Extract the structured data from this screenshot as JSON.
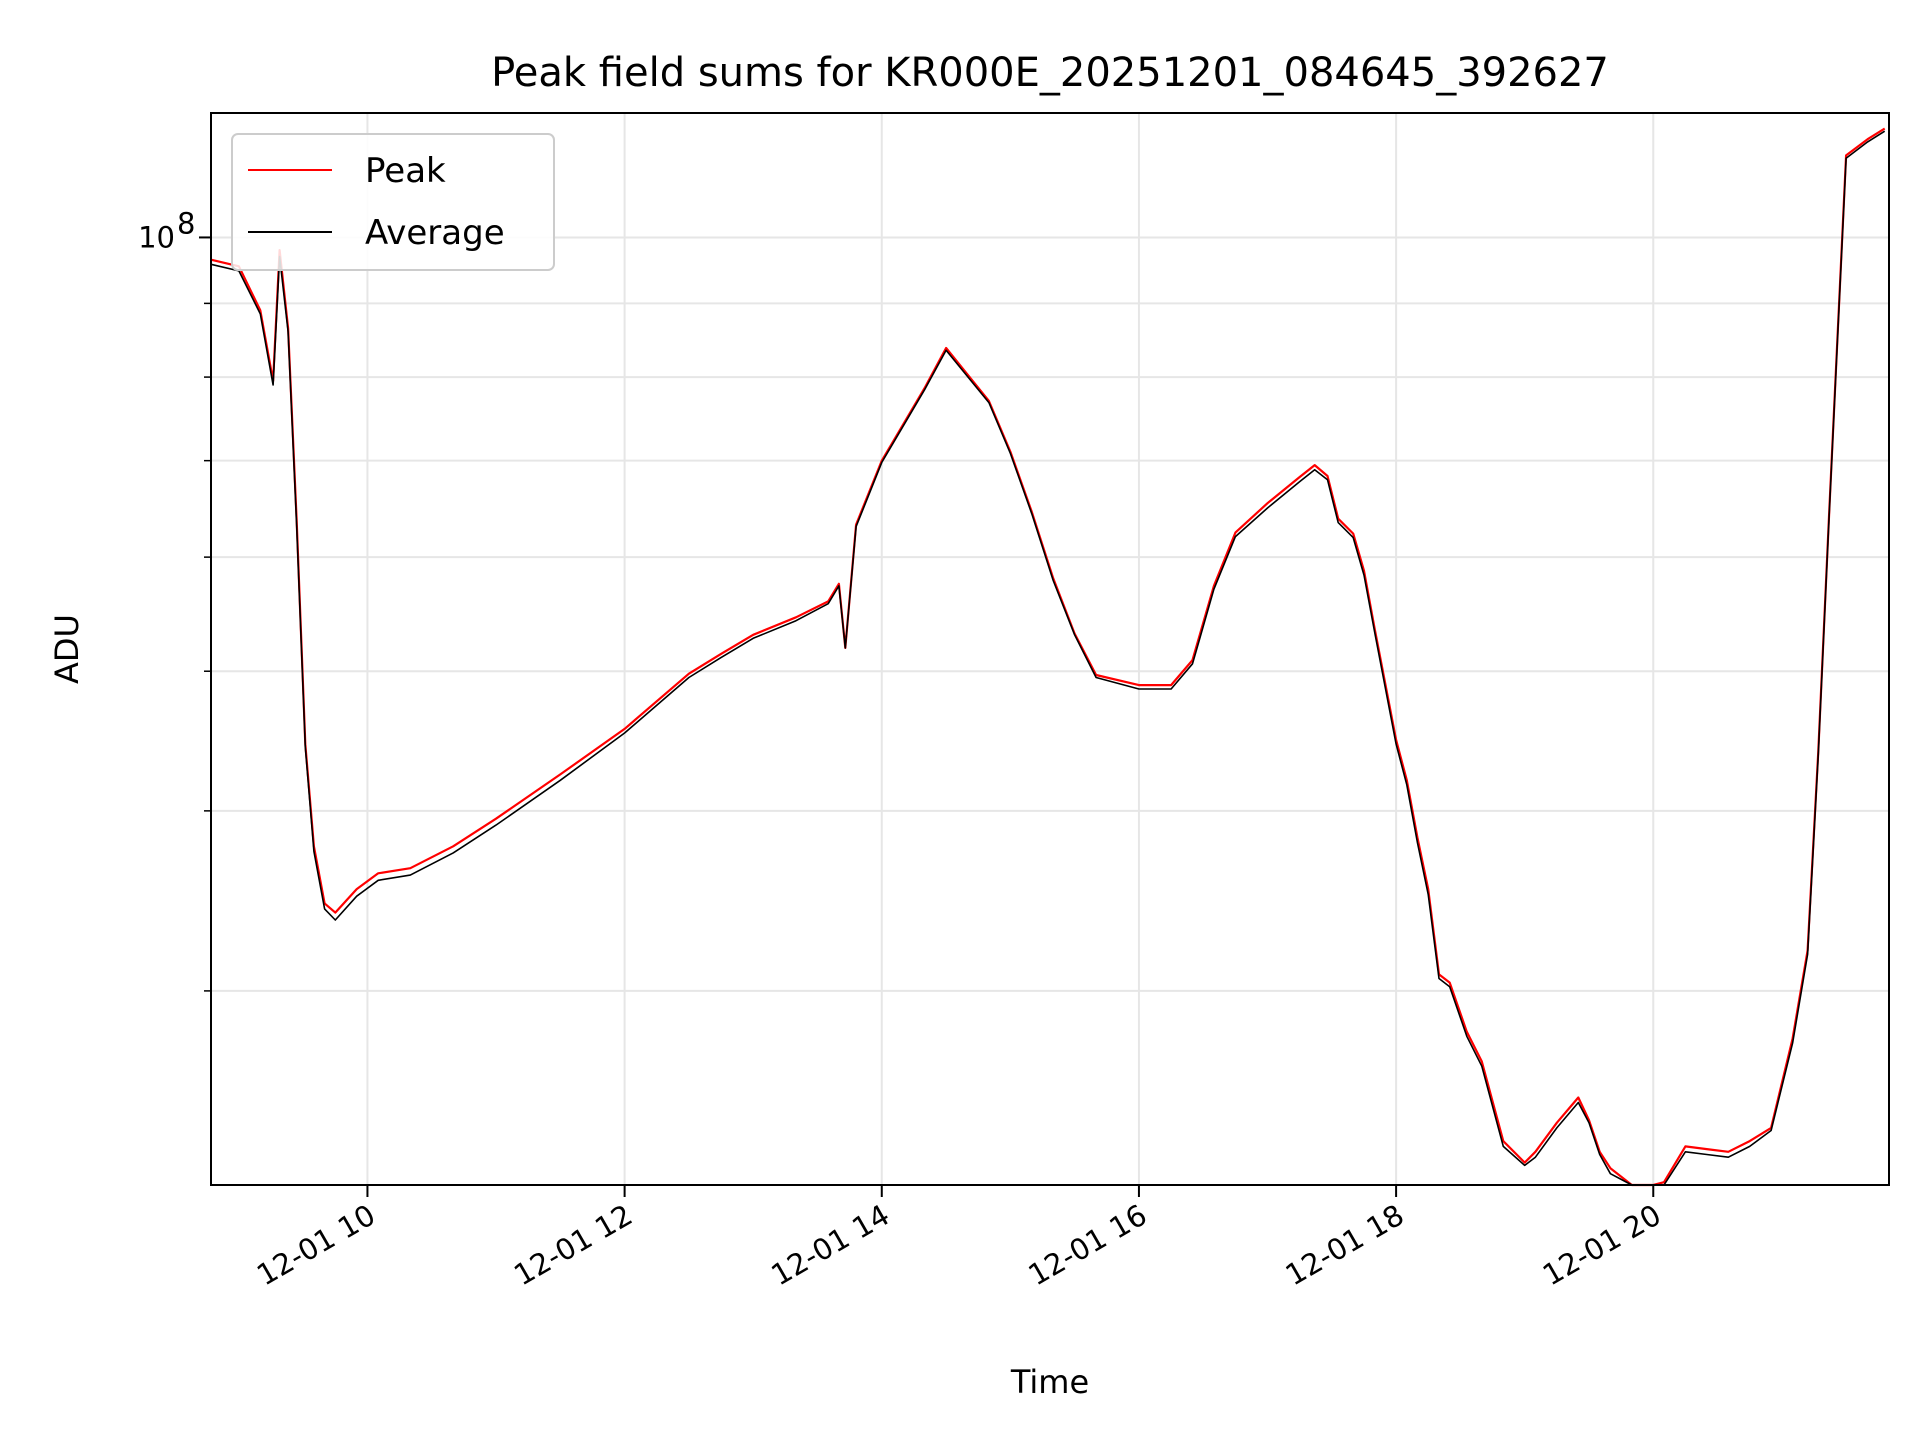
{
  "chart_data": {
    "type": "line",
    "title": "Peak field sums for KR000E_20251201_084645_392627",
    "xlabel": "Time",
    "ylabel": "ADU",
    "x_scale": "time",
    "y_scale": "log",
    "xlim": [
      "2025-12-01 08:47",
      "2025-12-01 21:50"
    ],
    "ylim": [
      22000000,
      122000000
    ],
    "x_ticks": [
      {
        "value": "2025-12-01 10:00",
        "label": "12-01 10"
      },
      {
        "value": "2025-12-01 12:00",
        "label": "12-01 12"
      },
      {
        "value": "2025-12-01 14:00",
        "label": "12-01 14"
      },
      {
        "value": "2025-12-01 16:00",
        "label": "12-01 16"
      },
      {
        "value": "2025-12-01 18:00",
        "label": "12-01 18"
      },
      {
        "value": "2025-12-01 20:00",
        "label": "12-01 20"
      }
    ],
    "y_major_ticks": [
      {
        "value": 100000000,
        "label_base": "10",
        "label_exp": "8"
      }
    ],
    "y_minor_ticks": [
      30000000,
      40000000,
      50000000,
      60000000,
      70000000,
      80000000,
      90000000
    ],
    "grid": true,
    "legend": {
      "position": "top-left"
    },
    "series": [
      {
        "name": "Peak",
        "color": "#ff0000",
        "x": [
          "2025-12-01 08:47",
          "2025-12-01 09:00",
          "2025-12-01 09:10",
          "2025-12-01 09:16",
          "2025-12-01 09:19",
          "2025-12-01 09:23",
          "2025-12-01 09:27",
          "2025-12-01 09:31",
          "2025-12-01 09:35",
          "2025-12-01 09:40",
          "2025-12-01 09:45",
          "2025-12-01 09:55",
          "2025-12-01 10:05",
          "2025-12-01 10:20",
          "2025-12-01 10:40",
          "2025-12-01 11:00",
          "2025-12-01 11:30",
          "2025-12-01 12:00",
          "2025-12-01 12:30",
          "2025-12-01 12:45",
          "2025-12-01 13:00",
          "2025-12-01 13:20",
          "2025-12-01 13:35",
          "2025-12-01 13:40",
          "2025-12-01 13:43",
          "2025-12-01 13:48",
          "2025-12-01 14:00",
          "2025-12-01 14:20",
          "2025-12-01 14:30",
          "2025-12-01 14:50",
          "2025-12-01 15:00",
          "2025-12-01 15:10",
          "2025-12-01 15:20",
          "2025-12-01 15:30",
          "2025-12-01 15:40",
          "2025-12-01 16:00",
          "2025-12-01 16:15",
          "2025-12-01 16:25",
          "2025-12-01 16:35",
          "2025-12-01 16:45",
          "2025-12-01 17:00",
          "2025-12-01 17:15",
          "2025-12-01 17:22",
          "2025-12-01 17:28",
          "2025-12-01 17:33",
          "2025-12-01 17:40",
          "2025-12-01 17:45",
          "2025-12-01 17:50",
          "2025-12-01 18:00",
          "2025-12-01 18:05",
          "2025-12-01 18:10",
          "2025-12-01 18:15",
          "2025-12-01 18:20",
          "2025-12-01 18:25",
          "2025-12-01 18:33",
          "2025-12-01 18:40",
          "2025-12-01 18:50",
          "2025-12-01 19:00",
          "2025-12-01 19:05",
          "2025-12-01 19:15",
          "2025-12-01 19:25",
          "2025-12-01 19:30",
          "2025-12-01 19:35",
          "2025-12-01 19:40",
          "2025-12-01 19:50",
          "2025-12-01 20:00",
          "2025-12-01 20:05",
          "2025-12-01 20:15",
          "2025-12-01 20:25",
          "2025-12-01 20:35",
          "2025-12-01 20:45",
          "2025-12-01 20:55",
          "2025-12-01 21:05",
          "2025-12-01 21:12",
          "2025-12-01 21:17",
          "2025-12-01 21:22",
          "2025-12-01 21:30",
          "2025-12-01 21:40",
          "2025-12-01 21:48"
        ],
        "values": [
          96500000,
          95500000,
          89000000,
          79500000,
          98000000,
          86500000,
          63500000,
          44500000,
          37800000,
          34500000,
          34000000,
          35300000,
          36200000,
          36500000,
          37800000,
          39500000,
          42400000,
          45600000,
          49800000,
          51400000,
          53000000,
          54500000,
          55900000,
          57500000,
          51900000,
          63200000,
          70000000,
          78600000,
          83800000,
          77000000,
          71000000,
          64500000,
          58000000,
          53100000,
          49700000,
          48900000,
          48900000,
          50900000,
          57300000,
          62400000,
          65400000,
          68200000,
          69500000,
          68300000,
          63800000,
          62300000,
          58700000,
          53500000,
          44800000,
          42000000,
          38300000,
          35300000,
          30800000,
          30400000,
          28100000,
          26800000,
          23600000,
          22800000,
          23200000,
          24300000,
          25300000,
          24400000,
          23200000,
          22600000,
          21700000,
          21400000,
          22100000,
          23400000,
          23300000,
          23200000,
          23600000,
          24100000,
          27800000,
          32000000,
          44000000,
          64000000,
          114000000,
          117000000,
          119000000
        ]
      },
      {
        "name": "Average",
        "color": "#000000",
        "x": [
          "2025-12-01 08:47",
          "2025-12-01 09:00",
          "2025-12-01 09:10",
          "2025-12-01 09:16",
          "2025-12-01 09:19",
          "2025-12-01 09:23",
          "2025-12-01 09:27",
          "2025-12-01 09:31",
          "2025-12-01 09:35",
          "2025-12-01 09:40",
          "2025-12-01 09:45",
          "2025-12-01 09:55",
          "2025-12-01 10:05",
          "2025-12-01 10:20",
          "2025-12-01 10:40",
          "2025-12-01 11:00",
          "2025-12-01 11:30",
          "2025-12-01 12:00",
          "2025-12-01 12:30",
          "2025-12-01 12:45",
          "2025-12-01 13:00",
          "2025-12-01 13:20",
          "2025-12-01 13:35",
          "2025-12-01 13:40",
          "2025-12-01 13:43",
          "2025-12-01 13:48",
          "2025-12-01 14:00",
          "2025-12-01 14:20",
          "2025-12-01 14:30",
          "2025-12-01 14:50",
          "2025-12-01 15:00",
          "2025-12-01 15:10",
          "2025-12-01 15:20",
          "2025-12-01 15:30",
          "2025-12-01 15:40",
          "2025-12-01 16:00",
          "2025-12-01 16:15",
          "2025-12-01 16:25",
          "2025-12-01 16:35",
          "2025-12-01 16:45",
          "2025-12-01 17:00",
          "2025-12-01 17:15",
          "2025-12-01 17:22",
          "2025-12-01 17:28",
          "2025-12-01 17:33",
          "2025-12-01 17:40",
          "2025-12-01 17:45",
          "2025-12-01 17:50",
          "2025-12-01 18:00",
          "2025-12-01 18:05",
          "2025-12-01 18:10",
          "2025-12-01 18:15",
          "2025-12-01 18:20",
          "2025-12-01 18:25",
          "2025-12-01 18:33",
          "2025-12-01 18:40",
          "2025-12-01 18:50",
          "2025-12-01 19:00",
          "2025-12-01 19:05",
          "2025-12-01 19:15",
          "2025-12-01 19:25",
          "2025-12-01 19:30",
          "2025-12-01 19:35",
          "2025-12-01 19:40",
          "2025-12-01 19:50",
          "2025-12-01 20:00",
          "2025-12-01 20:05",
          "2025-12-01 20:15",
          "2025-12-01 20:25",
          "2025-12-01 20:35",
          "2025-12-01 20:45",
          "2025-12-01 20:55",
          "2025-12-01 21:05",
          "2025-12-01 21:12",
          "2025-12-01 21:17",
          "2025-12-01 21:22",
          "2025-12-01 21:30",
          "2025-12-01 21:40",
          "2025-12-01 21:48"
        ],
        "values": [
          95800000,
          94800000,
          88500000,
          79000000,
          97000000,
          86000000,
          63000000,
          44300000,
          37500000,
          34200000,
          33600000,
          34900000,
          35800000,
          36100000,
          37400000,
          39100000,
          42000000,
          45300000,
          49500000,
          51100000,
          52700000,
          54200000,
          55700000,
          57300000,
          51900000,
          63000000,
          69800000,
          78400000,
          83500000,
          76800000,
          70800000,
          64300000,
          57800000,
          53000000,
          49500000,
          48600000,
          48600000,
          50600000,
          57000000,
          62000000,
          64900000,
          67700000,
          69000000,
          67900000,
          63400000,
          61900000,
          58300000,
          53200000,
          44500000,
          41700000,
          38000000,
          35000000,
          30600000,
          30200000,
          27900000,
          26600000,
          23400000,
          22700000,
          23000000,
          24100000,
          25100000,
          24300000,
          23100000,
          22400000,
          21600000,
          21200000,
          21900000,
          23200000,
          23100000,
          23000000,
          23400000,
          24000000,
          27600000,
          31800000,
          43800000,
          63800000,
          113500000,
          116500000,
          118500000
        ]
      }
    ]
  }
}
